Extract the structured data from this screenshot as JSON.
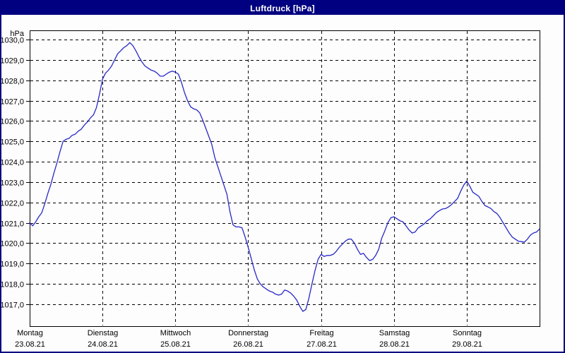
{
  "window": {
    "title": "Luftdruck [hPa]"
  },
  "colors": {
    "frame": "#000080",
    "titlebar_bg": "#000080",
    "title_text": "#ffffff",
    "plot_bg": "#fcfdfc",
    "axis": "#000000",
    "grid": "#000000",
    "line": "#2828c8",
    "label": "#000000"
  },
  "chart_data": {
    "type": "line",
    "title": "Luftdruck [hPa]",
    "ylabel": "hPa",
    "y_unit_label": "hPa",
    "grid": "dashed",
    "legend": "none",
    "ylim": [
      1016.0,
      1030.5
    ],
    "y_tick_values": [
      1030,
      1029,
      1028,
      1027,
      1026,
      1025,
      1024,
      1023,
      1022,
      1021,
      1020,
      1019,
      1018,
      1017
    ],
    "y_tick_labels": [
      "1030,0",
      "1029,0",
      "1028,0",
      "1027,0",
      "1026,0",
      "1025,0",
      "1024,0",
      "1023,0",
      "1022,0",
      "1021,0",
      "1020,0",
      "1019,0",
      "1018,0",
      "1017,0"
    ],
    "x_days": [
      {
        "name": "Montag",
        "date": "23.08.21"
      },
      {
        "name": "Dienstag",
        "date": "24.08.21"
      },
      {
        "name": "Mittwoch",
        "date": "25.08.21"
      },
      {
        "name": "Donnerstag",
        "date": "26.08.21"
      },
      {
        "name": "Freitag",
        "date": "27.08.21"
      },
      {
        "name": "Samstag",
        "date": "28.08.21"
      },
      {
        "name": "Sonntag",
        "date": "29.08.21"
      }
    ],
    "sampling": "hourly",
    "hours_per_point": 1,
    "series": [
      {
        "name": "Luftdruck",
        "unit": "hPa",
        "values": [
          1021.0,
          1020.85,
          1021.05,
          1021.3,
          1021.5,
          1021.95,
          1022.45,
          1022.9,
          1023.45,
          1023.95,
          1024.5,
          1025.0,
          1025.1,
          1025.15,
          1025.3,
          1025.35,
          1025.5,
          1025.6,
          1025.8,
          1025.95,
          1026.15,
          1026.3,
          1026.65,
          1027.3,
          1028.05,
          1028.35,
          1028.5,
          1028.7,
          1029.0,
          1029.3,
          1029.45,
          1029.6,
          1029.7,
          1029.85,
          1029.7,
          1029.45,
          1029.15,
          1028.9,
          1028.7,
          1028.6,
          1028.5,
          1028.45,
          1028.35,
          1028.2,
          1028.2,
          1028.3,
          1028.4,
          1028.45,
          1028.4,
          1028.3,
          1027.9,
          1027.4,
          1027.0,
          1026.7,
          1026.6,
          1026.55,
          1026.4,
          1026.05,
          1025.65,
          1025.25,
          1024.85,
          1024.2,
          1023.75,
          1023.3,
          1022.85,
          1022.4,
          1021.55,
          1020.9,
          1020.8,
          1020.8,
          1020.75,
          1020.3,
          1019.8,
          1019.25,
          1018.7,
          1018.25,
          1018.0,
          1017.85,
          1017.75,
          1017.65,
          1017.6,
          1017.5,
          1017.45,
          1017.5,
          1017.7,
          1017.65,
          1017.55,
          1017.4,
          1017.2,
          1016.9,
          1016.65,
          1016.75,
          1017.3,
          1018.0,
          1018.65,
          1019.2,
          1019.45,
          1019.35,
          1019.4,
          1019.4,
          1019.45,
          1019.6,
          1019.8,
          1019.95,
          1020.1,
          1020.2,
          1020.2,
          1020.0,
          1019.7,
          1019.45,
          1019.5,
          1019.3,
          1019.15,
          1019.2,
          1019.4,
          1019.7,
          1020.25,
          1020.6,
          1021.0,
          1021.25,
          1021.3,
          1021.2,
          1021.1,
          1021.05,
          1020.85,
          1020.65,
          1020.5,
          1020.55,
          1020.75,
          1020.85,
          1020.95,
          1021.1,
          1021.2,
          1021.35,
          1021.5,
          1021.6,
          1021.68,
          1021.7,
          1021.78,
          1021.9,
          1022.05,
          1022.2,
          1022.55,
          1022.85,
          1023.05,
          1022.8,
          1022.5,
          1022.4,
          1022.3,
          1022.05,
          1021.85,
          1021.78,
          1021.7,
          1021.55,
          1021.45,
          1021.25,
          1021.0,
          1020.75,
          1020.5,
          1020.3,
          1020.2,
          1020.1,
          1020.08,
          1020.05,
          1020.2,
          1020.4,
          1020.5,
          1020.55,
          1020.7
        ]
      }
    ]
  }
}
